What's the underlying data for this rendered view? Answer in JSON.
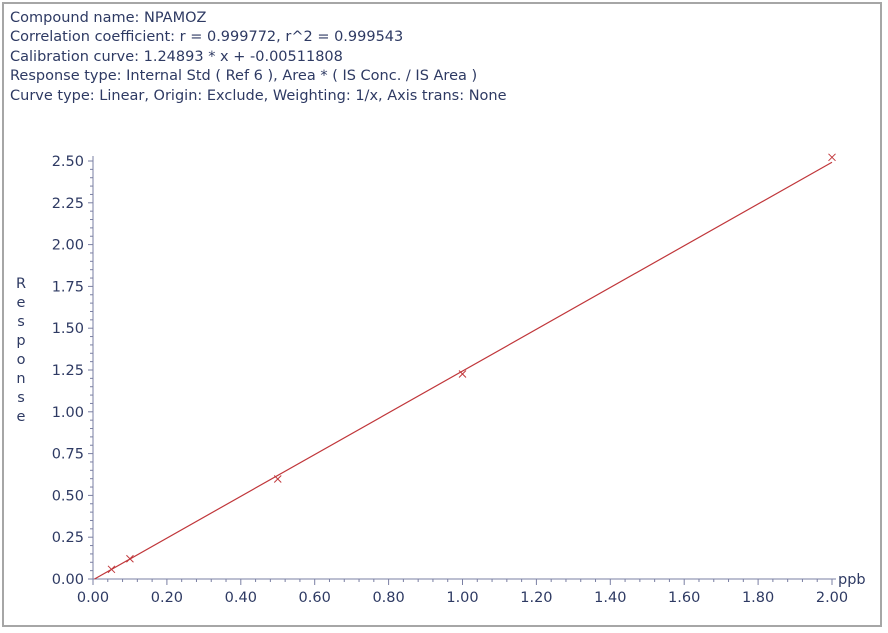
{
  "header": {
    "compound_name": "Compound name: NPAMOZ",
    "correlation": "Correlation coefficient: r = 0.999772, r^2 = 0.999543",
    "calibration": "Calibration curve: 1.24893 * x + -0.00511808",
    "response_type": "Response type: Internal Std ( Ref 6 ), Area * ( IS Conc. / IS Area )",
    "curve_type": "Curve type: Linear, Origin: Exclude, Weighting: 1/x, Axis trans: None"
  },
  "colors": {
    "text": "#2e3a63",
    "axis": "#7a7fa3",
    "fit_line": "#c0363a",
    "markers": "#c0363a"
  },
  "chart_data": {
    "type": "scatter",
    "xlabel": "ppb",
    "ylabel": "Response",
    "xlim": [
      0,
      2.0
    ],
    "ylim": [
      0,
      2.5
    ],
    "x_ticks": [
      "0.00",
      "0.20",
      "0.40",
      "0.60",
      "0.80",
      "1.00",
      "1.20",
      "1.40",
      "1.60",
      "1.80",
      "2.00"
    ],
    "y_ticks": [
      "0.00",
      "0.25",
      "0.50",
      "0.75",
      "1.00",
      "1.25",
      "1.50",
      "1.75",
      "2.00",
      "2.25",
      "2.50"
    ],
    "series": [
      {
        "points": [
          {
            "x": 0.05,
            "y": 0.058
          },
          {
            "x": 0.1,
            "y": 0.121
          },
          {
            "x": 0.5,
            "y": 0.598
          },
          {
            "x": 1.0,
            "y": 1.226
          },
          {
            "x": 2.0,
            "y": 2.522
          }
        ]
      }
    ],
    "fit": {
      "slope": 1.24893,
      "intercept": -0.00511808,
      "x_range": [
        0.0041,
        2.0
      ]
    },
    "grid": false
  }
}
